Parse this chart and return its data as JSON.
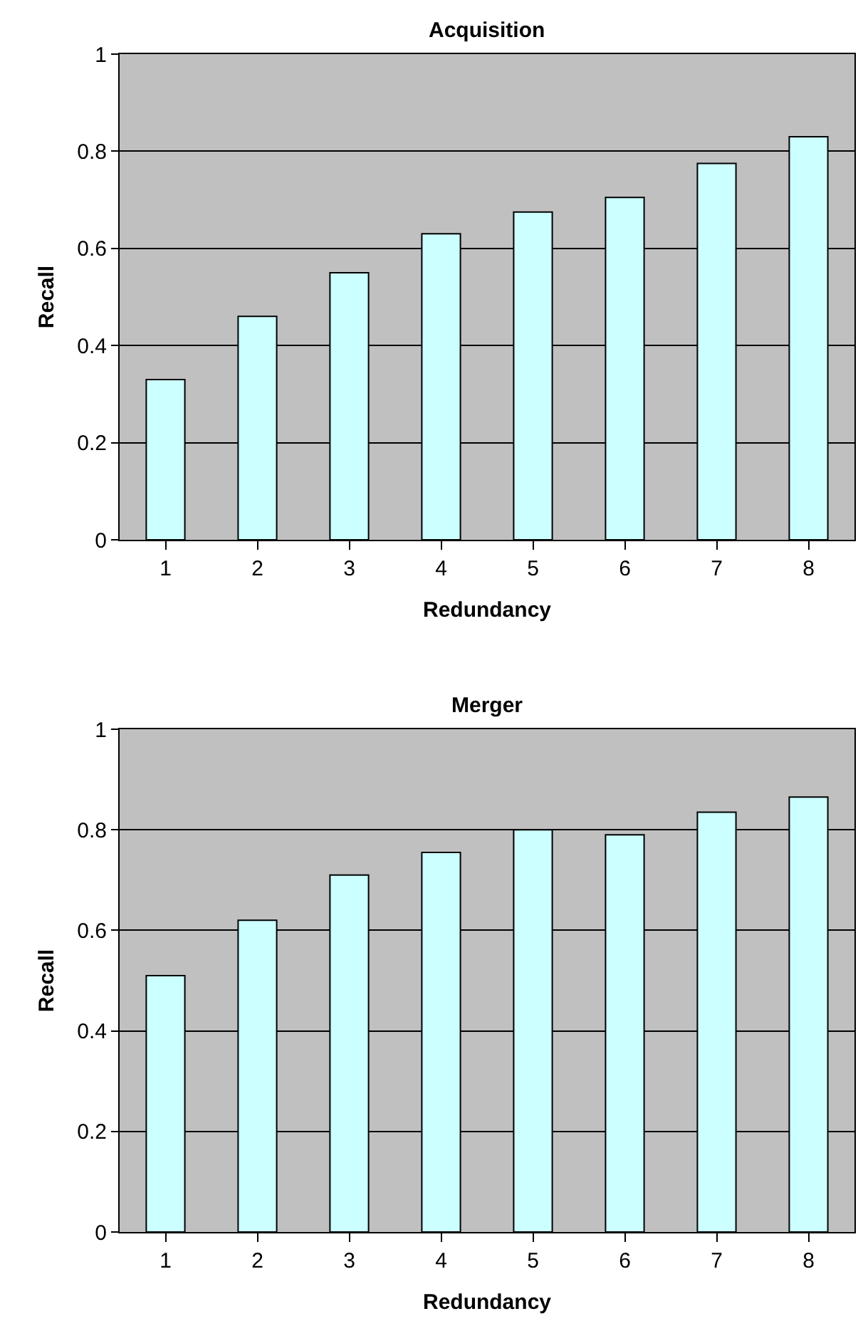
{
  "chart_data": [
    {
      "type": "bar",
      "title": "Acquisition",
      "xlabel": "Redundancy",
      "ylabel": "Recall",
      "categories": [
        "1",
        "2",
        "3",
        "4",
        "5",
        "6",
        "7",
        "8"
      ],
      "series": [
        {
          "color": "#ccffff",
          "values": [
            0.33,
            0.46,
            0.55,
            0.63,
            0.675,
            0.705,
            0.775,
            0.83
          ]
        }
      ],
      "ylim": [
        0,
        1
      ],
      "yticks": [
        0,
        0.2,
        0.4,
        0.6,
        0.8,
        1
      ],
      "grid": "y"
    },
    {
      "type": "bar",
      "title": "Merger",
      "xlabel": "Redundancy",
      "ylabel": "Recall",
      "categories": [
        "1",
        "2",
        "3",
        "4",
        "5",
        "6",
        "7",
        "8"
      ],
      "series": [
        {
          "color": "#ccffff",
          "values": [
            0.51,
            0.62,
            0.71,
            0.755,
            0.8,
            0.79,
            0.835,
            0.865
          ]
        }
      ],
      "ylim": [
        0,
        1
      ],
      "yticks": [
        0,
        0.2,
        0.4,
        0.6,
        0.8,
        1
      ],
      "grid": "y"
    }
  ]
}
